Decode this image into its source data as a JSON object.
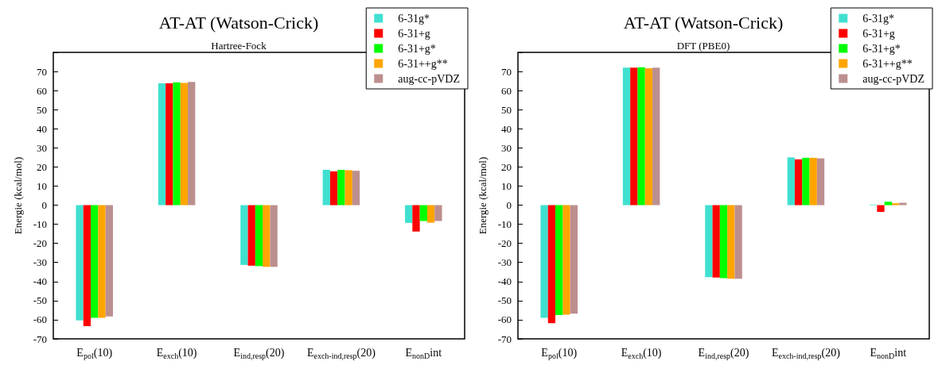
{
  "chart_data": [
    {
      "type": "bar",
      "title": "AT-AT (Watson-Crick)",
      "subtitle": "Hartree-Fock",
      "ylabel": "Energie (kcal/mol)",
      "categories": [
        "E$_{pol}$(10)",
        "E$_{exch}$(10)",
        "E$_{ind,resp}$(20)",
        "E$_{exch-ind,resp}$(20)",
        "E$_{nonD}$int"
      ],
      "series": [
        {
          "name": "6-31g*",
          "color": "#40e0d0",
          "values": [
            -60.3,
            63.8,
            -31.3,
            18.5,
            -9.3
          ]
        },
        {
          "name": "6-31+g",
          "color": "#ff0000",
          "values": [
            -63.3,
            63.8,
            -31.7,
            17.7,
            -13.8
          ]
        },
        {
          "name": "6-31+g*",
          "color": "#00ff00",
          "values": [
            -59,
            64.3,
            -31.9,
            18.5,
            -8.3
          ]
        },
        {
          "name": "6-31++g**",
          "color": "#ffa500",
          "values": [
            -59,
            64,
            -32.3,
            18.3,
            -9.2
          ]
        },
        {
          "name": "aug-cc-pVDZ",
          "color": "#bc8f8f",
          "values": [
            -58.3,
            64.5,
            -32.3,
            18,
            -8.3
          ]
        }
      ],
      "ylim": [
        -70,
        80
      ],
      "yticks": [
        -70,
        -60,
        -50,
        -40,
        -30,
        -20,
        -10,
        0,
        10,
        20,
        30,
        40,
        50,
        60,
        70,
        {
          "value": 80,
          "label": null
        }
      ],
      "grid": false,
      "legend": "top right"
    },
    {
      "type": "bar",
      "title": "AT-AT (Watson-Crick)",
      "subtitle": "DFT (PBE0)",
      "ylabel": "Energie (kcal/mol)",
      "categories": [
        "E$_{pol}$(10)",
        "E$_{exch}$(10)",
        "E$_{ind,resp}$(20)",
        "E$_{exch-ind,resp}$(20)",
        "E$_{nonD}$int"
      ],
      "series": [
        {
          "name": "6-31g*",
          "color": "#40e0d0",
          "values": [
            -59,
            72,
            -37.7,
            25,
            0.3
          ]
        },
        {
          "name": "6-31+g",
          "color": "#ff0000",
          "values": [
            -61.8,
            72,
            -37.9,
            24,
            -3.5
          ]
        },
        {
          "name": "6-31+g*",
          "color": "#00ff00",
          "values": [
            -57.5,
            72.2,
            -38.2,
            24.8,
            1.8
          ]
        },
        {
          "name": "6-31++g**",
          "color": "#ffa500",
          "values": [
            -57.3,
            71.7,
            -38.5,
            24.8,
            1
          ]
        },
        {
          "name": "aug-cc-pVDZ",
          "color": "#bc8f8f",
          "values": [
            -56.8,
            72,
            -38.5,
            24.5,
            1.3
          ]
        }
      ],
      "ylim": [
        -70,
        80
      ],
      "yticks": [
        -70,
        -60,
        -50,
        -40,
        -30,
        -20,
        -10,
        0,
        10,
        20,
        30,
        40,
        50,
        60,
        70,
        {
          "value": 80,
          "label": null
        }
      ],
      "grid": false,
      "legend": "top right"
    }
  ]
}
